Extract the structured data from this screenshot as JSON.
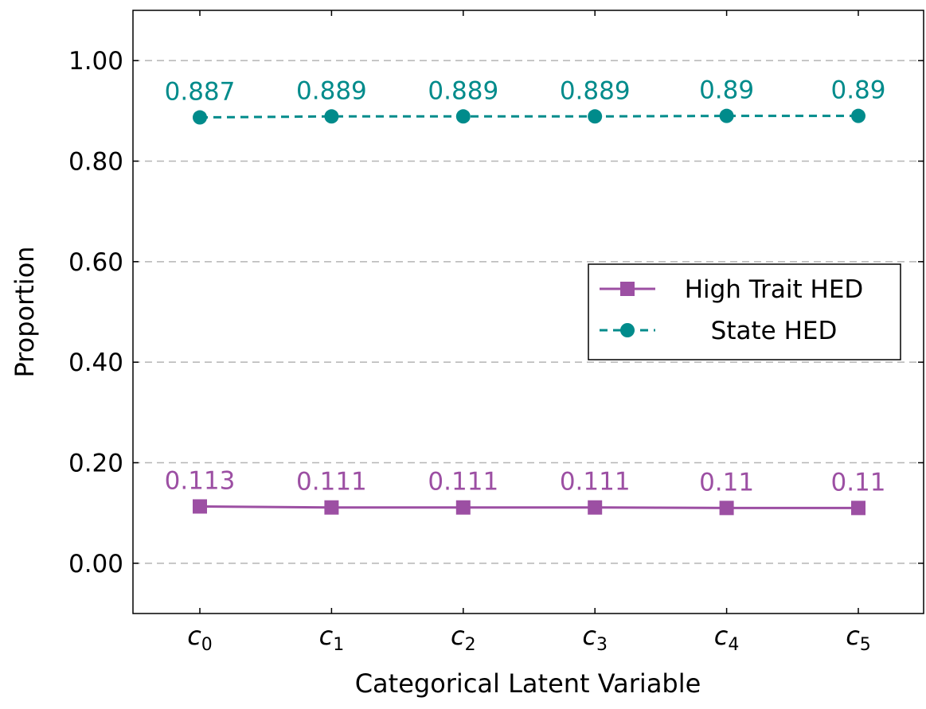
{
  "chart_data": {
    "type": "line",
    "title": "",
    "xlabel": "Categorical Latent Variable",
    "ylabel": "Proportion",
    "categories": [
      {
        "base": "c",
        "sub": "0"
      },
      {
        "base": "c",
        "sub": "1"
      },
      {
        "base": "c",
        "sub": "2"
      },
      {
        "base": "c",
        "sub": "3"
      },
      {
        "base": "c",
        "sub": "4"
      },
      {
        "base": "c",
        "sub": "5"
      }
    ],
    "ylim": [
      -0.1,
      1.1
    ],
    "yticks": [
      0.0,
      0.2,
      0.4,
      0.6,
      0.8,
      1.0
    ],
    "ytick_labels": [
      "0.00",
      "0.20",
      "0.40",
      "0.60",
      "0.80",
      "1.00"
    ],
    "grid": "horizontal dashed",
    "legend_position": "right",
    "series": [
      {
        "name": "High Trait HED",
        "values": [
          0.113,
          0.111,
          0.111,
          0.111,
          0.11,
          0.11
        ],
        "labels": [
          "0.113",
          "0.111",
          "0.111",
          "0.111",
          "0.11",
          "0.11"
        ],
        "color": "#9c4fa3",
        "marker": "square",
        "line_style": "solid"
      },
      {
        "name": "State HED",
        "values": [
          0.887,
          0.889,
          0.889,
          0.889,
          0.89,
          0.89
        ],
        "labels": [
          "0.887",
          "0.889",
          "0.889",
          "0.889",
          "0.89",
          "0.89"
        ],
        "color": "#008b8b",
        "marker": "circle",
        "line_style": "dashed"
      }
    ]
  }
}
